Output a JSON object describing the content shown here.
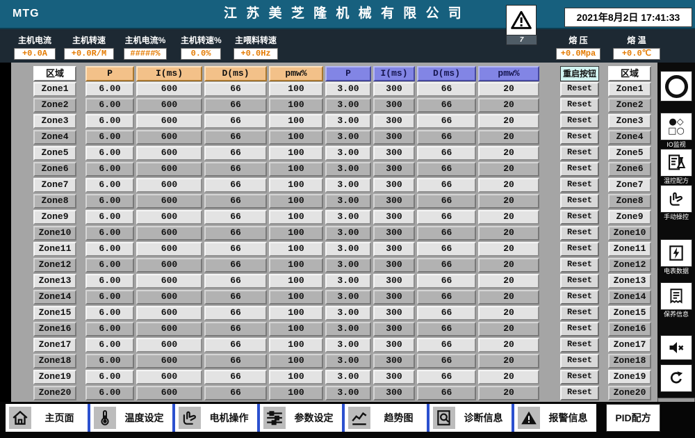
{
  "colors": {
    "titlebar": "#17607e",
    "statusbar": "#1d2933",
    "value_text_orange": "#e47a00",
    "header_orange": "#f3c189",
    "header_blue": "#8285e5",
    "reset_header_bg": "#d2f4f2",
    "row_light": "#e3e3e3",
    "row_dark": "#b2b2b2",
    "nav_divider_blue": "#2b50cf"
  },
  "header": {
    "logo": "MTG",
    "title": "江 苏 美 芝 隆 机 械 有 限 公 司",
    "alarm_count": "7",
    "datetime": "2021年8月2日 17:41:33"
  },
  "status": {
    "fields": [
      {
        "label": "主机电流",
        "value": "+0.0A"
      },
      {
        "label": "主机转速",
        "value": "+0.0R/M"
      },
      {
        "label": "主机电流%",
        "value": "#####%"
      },
      {
        "label": "主机转速%",
        "value": "0.0%"
      },
      {
        "label": "主喂料转速",
        "value": "+0.0Hz"
      }
    ],
    "right_fields": [
      {
        "label": "熔 压",
        "value": "+0.0Mpa"
      },
      {
        "label": "熔 温",
        "value": "+0.0℃"
      }
    ]
  },
  "table": {
    "zone_header": "区域",
    "headers_group1": [
      "P",
      "I(ms)",
      "D(ms)",
      "pmw%"
    ],
    "headers_group2": [
      "P",
      "I(ms)",
      "D(ms)",
      "pmw%"
    ],
    "reset_header": "重启按钮",
    "reset_label": "Reset",
    "rows": [
      {
        "zone": "Zone1",
        "g1": [
          "6.00",
          "600",
          "66",
          "100"
        ],
        "g2": [
          "3.00",
          "300",
          "66",
          "20"
        ]
      },
      {
        "zone": "Zone2",
        "g1": [
          "6.00",
          "600",
          "66",
          "100"
        ],
        "g2": [
          "3.00",
          "300",
          "66",
          "20"
        ]
      },
      {
        "zone": "Zone3",
        "g1": [
          "6.00",
          "600",
          "66",
          "100"
        ],
        "g2": [
          "3.00",
          "300",
          "66",
          "20"
        ]
      },
      {
        "zone": "Zone4",
        "g1": [
          "6.00",
          "600",
          "66",
          "100"
        ],
        "g2": [
          "3.00",
          "300",
          "66",
          "20"
        ]
      },
      {
        "zone": "Zone5",
        "g1": [
          "6.00",
          "600",
          "66",
          "100"
        ],
        "g2": [
          "3.00",
          "300",
          "66",
          "20"
        ]
      },
      {
        "zone": "Zone6",
        "g1": [
          "6.00",
          "600",
          "66",
          "100"
        ],
        "g2": [
          "3.00",
          "300",
          "66",
          "20"
        ]
      },
      {
        "zone": "Zone7",
        "g1": [
          "6.00",
          "600",
          "66",
          "100"
        ],
        "g2": [
          "3.00",
          "300",
          "66",
          "20"
        ]
      },
      {
        "zone": "Zone8",
        "g1": [
          "6.00",
          "600",
          "66",
          "100"
        ],
        "g2": [
          "3.00",
          "300",
          "66",
          "20"
        ]
      },
      {
        "zone": "Zone9",
        "g1": [
          "6.00",
          "600",
          "66",
          "100"
        ],
        "g2": [
          "3.00",
          "300",
          "66",
          "20"
        ]
      },
      {
        "zone": "Zone10",
        "g1": [
          "6.00",
          "600",
          "66",
          "100"
        ],
        "g2": [
          "3.00",
          "300",
          "66",
          "20"
        ]
      },
      {
        "zone": "Zone11",
        "g1": [
          "6.00",
          "600",
          "66",
          "100"
        ],
        "g2": [
          "3.00",
          "300",
          "66",
          "20"
        ]
      },
      {
        "zone": "Zone12",
        "g1": [
          "6.00",
          "600",
          "66",
          "100"
        ],
        "g2": [
          "3.00",
          "300",
          "66",
          "20"
        ]
      },
      {
        "zone": "Zone13",
        "g1": [
          "6.00",
          "600",
          "66",
          "100"
        ],
        "g2": [
          "3.00",
          "300",
          "66",
          "20"
        ]
      },
      {
        "zone": "Zone14",
        "g1": [
          "6.00",
          "600",
          "66",
          "100"
        ],
        "g2": [
          "3.00",
          "300",
          "66",
          "20"
        ]
      },
      {
        "zone": "Zone15",
        "g1": [
          "6.00",
          "600",
          "66",
          "100"
        ],
        "g2": [
          "3.00",
          "300",
          "66",
          "20"
        ]
      },
      {
        "zone": "Zone16",
        "g1": [
          "6.00",
          "600",
          "66",
          "100"
        ],
        "g2": [
          "3.00",
          "300",
          "66",
          "20"
        ]
      },
      {
        "zone": "Zone17",
        "g1": [
          "6.00",
          "600",
          "66",
          "100"
        ],
        "g2": [
          "3.00",
          "300",
          "66",
          "20"
        ]
      },
      {
        "zone": "Zone18",
        "g1": [
          "6.00",
          "600",
          "66",
          "100"
        ],
        "g2": [
          "3.00",
          "300",
          "66",
          "20"
        ]
      },
      {
        "zone": "Zone19",
        "g1": [
          "6.00",
          "600",
          "66",
          "100"
        ],
        "g2": [
          "3.00",
          "300",
          "66",
          "20"
        ]
      },
      {
        "zone": "Zone20",
        "g1": [
          "6.00",
          "600",
          "66",
          "100"
        ],
        "g2": [
          "3.00",
          "300",
          "66",
          "20"
        ]
      }
    ]
  },
  "sidebar": {
    "items": [
      {
        "icon": "circle-icon",
        "label": ""
      },
      {
        "icon": "io-monitor-icon",
        "label": "IO监视"
      },
      {
        "icon": "recipe-monitor-icon",
        "label": "温控配方"
      },
      {
        "icon": "manual-control-icon",
        "label": "手动操控"
      },
      {
        "icon": "meter-data-icon",
        "label": "电表数据"
      },
      {
        "icon": "maintenance-icon",
        "label": "保养信息"
      },
      {
        "icon": "mute-icon",
        "label": ""
      },
      {
        "icon": "refresh-icon",
        "label": ""
      },
      {
        "icon": "back-icon",
        "label": ""
      }
    ]
  },
  "nav": {
    "items": [
      {
        "icon": "home-icon",
        "label": "主页面"
      },
      {
        "icon": "thermometer-icon",
        "label": "温度设定"
      },
      {
        "icon": "hand-icon",
        "label": "电机操作"
      },
      {
        "icon": "sliders-icon",
        "label": "参数设定"
      },
      {
        "icon": "trend-icon",
        "label": "趋势图"
      },
      {
        "icon": "diagnosis-icon",
        "label": "诊断信息"
      },
      {
        "icon": "warning-icon",
        "label": "报警信息"
      }
    ],
    "pid_recipe_label": "PID配方"
  }
}
